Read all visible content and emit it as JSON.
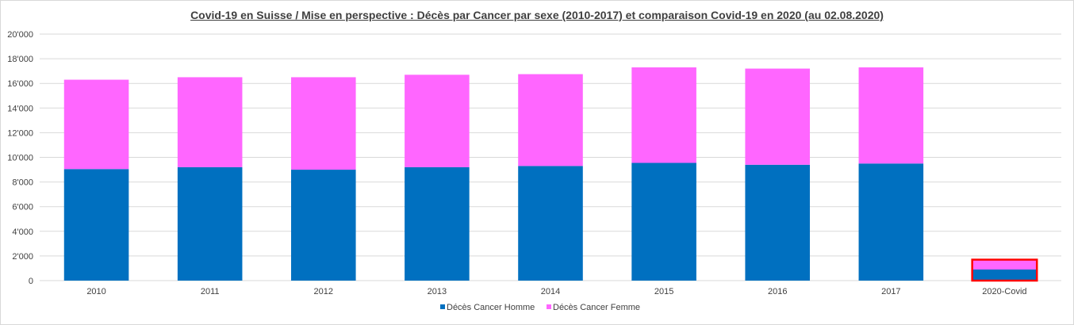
{
  "chart_data": {
    "type": "bar",
    "stacked": true,
    "title": "Covid-19 en Suisse / Mise en perspective : Décès par Cancer par sexe (2010-2017)  et comparaison  Covid-19 en 2020 (au 02.08.2020)",
    "xlabel": "",
    "ylabel": "",
    "categories": [
      "2010",
      "2011",
      "2012",
      "2013",
      "2014",
      "2015",
      "2016",
      "2017",
      "2020-Covid"
    ],
    "series": [
      {
        "name": "Décès Cancer Homme",
        "color": "#0070c0",
        "values": [
          9050,
          9200,
          9000,
          9200,
          9300,
          9550,
          9400,
          9500,
          900
        ]
      },
      {
        "name": "Décès Cancer Femme",
        "color": "#ff66ff",
        "values": [
          7250,
          7300,
          7500,
          7500,
          7450,
          7750,
          7800,
          7800,
          800
        ]
      }
    ],
    "ylim": [
      0,
      20000
    ],
    "yticks": [
      "0",
      "2'000",
      "4'000",
      "6'000",
      "8'000",
      "10'000",
      "12'000",
      "14'000",
      "16'000",
      "18'000",
      "20'000"
    ],
    "ytick_values": [
      0,
      2000,
      4000,
      6000,
      8000,
      10000,
      12000,
      14000,
      16000,
      18000,
      20000
    ],
    "grid": true,
    "legend_position": "bottom",
    "highlight_category": "2020-Covid",
    "highlight_color": "#ff0000",
    "gridline_color": "#d9d9d9"
  }
}
